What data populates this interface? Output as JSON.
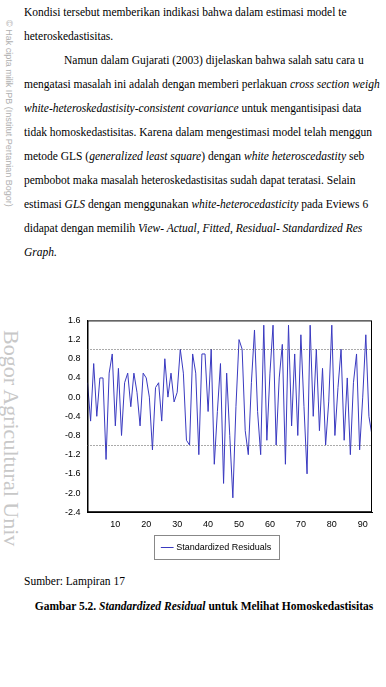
{
  "watermark": {
    "copyright": "© Hak cipta milik IPB (Institut Pertanian Bogor)",
    "institution": "Bogor Agricultural Univ"
  },
  "paragraphs": [
    {
      "indent": false,
      "lines": [
        [
          {
            "text": "Kondisi tersebut memberikan indikasi bahwa dalam estimasi model te",
            "italic": false
          }
        ],
        [
          {
            "text": "heteroskedastisitas.",
            "italic": false
          }
        ]
      ]
    },
    {
      "indent": true,
      "lines": [
        [
          {
            "text": "Namun dalam Gujarati (2003) dijelaskan bahwa salah satu cara u",
            "italic": false
          }
        ],
        [
          {
            "text": "mengatasi masalah ini adalah dengan memberi perlakuan ",
            "italic": false
          },
          {
            "text": "cross section weigh",
            "italic": true
          }
        ],
        [
          {
            "text": "white-heteroskedastisity-consistent covariance",
            "italic": true
          },
          {
            "text": " untuk mengantisipasi data",
            "italic": false
          }
        ],
        [
          {
            "text": "tidak homoskedastisitas. Karena dalam mengestimasi model telah menggun",
            "italic": false
          }
        ],
        [
          {
            "text": "metode GLS (",
            "italic": false
          },
          {
            "text": "generalized least square",
            "italic": true
          },
          {
            "text": ") dengan ",
            "italic": false
          },
          {
            "text": "white heteroscedastity",
            "italic": true
          },
          {
            "text": " seb",
            "italic": false
          }
        ],
        [
          {
            "text": "pembobot maka masalah heteroskedastisitas sudah dapat teratasi. Selain",
            "italic": false
          }
        ],
        [
          {
            "text": "estimasi ",
            "italic": false
          },
          {
            "text": "GLS",
            "italic": true
          },
          {
            "text": " dengan menggunakan ",
            "italic": false
          },
          {
            "text": "white-heterocedasticity",
            "italic": true
          },
          {
            "text": " pada Eviews 6",
            "italic": false
          }
        ],
        [
          {
            "text": "didapat dengan memilih ",
            "italic": false
          },
          {
            "text": "View- Actual, Fitted, Residual- Standardized Res",
            "italic": true
          }
        ],
        [
          {
            "text": "Graph.",
            "italic": true
          }
        ]
      ]
    }
  ],
  "chart_data": {
    "type": "line",
    "x": [
      1,
      2,
      3,
      4,
      5,
      6,
      7,
      8,
      9,
      10,
      11,
      12,
      13,
      14,
      15,
      16,
      17,
      18,
      19,
      20,
      21,
      22,
      23,
      24,
      25,
      26,
      27,
      28,
      29,
      30,
      31,
      32,
      33,
      34,
      35,
      36,
      37,
      38,
      39,
      40,
      41,
      42,
      43,
      44,
      45,
      46,
      47,
      48,
      49,
      50,
      51,
      52,
      53,
      54,
      55,
      56,
      57,
      58,
      59,
      60,
      61,
      62,
      63,
      64,
      65,
      66,
      67,
      68,
      69,
      70,
      71,
      72,
      73,
      74,
      75,
      76,
      77,
      78,
      79,
      80,
      81,
      82,
      83,
      84,
      85,
      86,
      87,
      88,
      89,
      90,
      91,
      92,
      93
    ],
    "series": [
      {
        "name": "Standardized Residuals",
        "color": "#3a3ac0",
        "values": [
          0.3,
          -0.5,
          0.7,
          -0.4,
          0.4,
          0.4,
          -1.3,
          0.5,
          0.9,
          -0.6,
          0.6,
          -0.8,
          0.3,
          0.5,
          -0.2,
          0.5,
          0.1,
          -0.6,
          0.5,
          0.4,
          0.0,
          -1.1,
          0.2,
          0.3,
          -0.5,
          0.8,
          0.0,
          0.5,
          -0.1,
          0.1,
          1.0,
          0.5,
          -0.9,
          -1.0,
          0.9,
          0.5,
          -1.2,
          0.9,
          0.9,
          -0.3,
          1.0,
          -1.4,
          -0.3,
          0.7,
          -1.8,
          0.5,
          -0.8,
          -2.1,
          -0.2,
          1.2,
          1.0,
          -0.7,
          -1.2,
          0.3,
          1.4,
          -0.3,
          -1.2,
          1.5,
          -0.9,
          0.5,
          1.5,
          -1.0,
          0.4,
          1.1,
          -1.4,
          1.5,
          -0.6,
          0.9,
          -0.8,
          1.3,
          -0.2,
          -1.6,
          1.5,
          -0.4,
          1.0,
          -0.7,
          0.6,
          -1.0,
          -0.1,
          1.5,
          -0.8,
          0.2,
          1.0,
          -0.9,
          0.4,
          -1.2,
          0.3,
          0.9,
          -1.1,
          0.0,
          1.3,
          -0.4,
          -0.8
        ]
      }
    ],
    "xlim": [
      1,
      93
    ],
    "xticks": [
      10,
      20,
      30,
      40,
      50,
      60,
      70,
      80,
      90
    ],
    "ylim": [
      -2.4,
      1.6
    ],
    "yticks": [
      -2.4,
      {
        "value": -2,
        "label": "-2.0"
      },
      -1.6,
      -1.2,
      -0.8,
      -0.4,
      {
        "value": 0,
        "label": "0.0"
      },
      0.4,
      0.8,
      1.2,
      1.6
    ],
    "hlines": [
      1,
      -1
    ],
    "grid": false,
    "legend": "bottom"
  },
  "source": "Sumber: Lampiran 17",
  "caption": [
    {
      "text": "Gambar 5.2. ",
      "italic": false
    },
    {
      "text": "Standardized Residual",
      "italic": true
    },
    {
      "text": " untuk Melihat Homoskedastisitas",
      "italic": false
    }
  ]
}
